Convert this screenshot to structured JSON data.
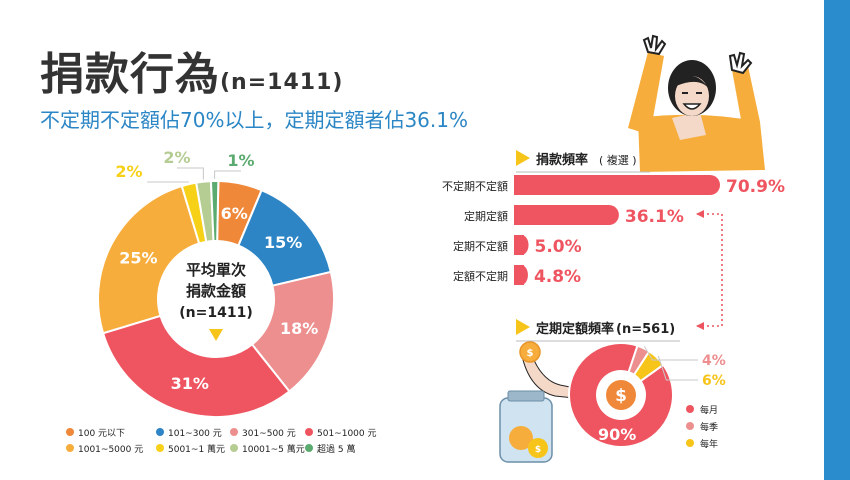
{
  "header": {
    "title": "捐款行為",
    "title_n": "(n=1411)",
    "subtitle": "不定期不定額佔70%以上，定期定額者佔36.1%"
  },
  "colors": {
    "accent_blue": "#2a8ccc",
    "bar_red": "#ef5560",
    "orange": "#f7ad3c"
  },
  "chart_data": [
    {
      "type": "pie",
      "center_label": [
        "平均單次",
        "捐款金額",
        "(n=1411)"
      ],
      "labels": [
        "100 元以下",
        "101~300 元",
        "301~500 元",
        "501~1000 元",
        "1001~5000 元",
        "5001~1 萬元",
        "10001~5 萬元",
        "超過 5 萬"
      ],
      "values": [
        6,
        15,
        18,
        31,
        25,
        2,
        2,
        1
      ],
      "display": [
        "6%",
        "15%",
        "18%",
        "31%",
        "25%",
        "2%",
        "2%",
        "1%"
      ],
      "colors": [
        "#f0883a",
        "#2d85c6",
        "#ec8f8e",
        "#ef5560",
        "#f7ad3c",
        "#f7d117",
        "#b5cd93",
        "#5bab70"
      ]
    },
    {
      "type": "bar",
      "title": "捐款頻率",
      "title_note": "( 複選 )",
      "categories": [
        "不定期不定額",
        "定期定額",
        "定期不定額",
        "定額不定期"
      ],
      "values": [
        70.9,
        36.1,
        5.0,
        4.8
      ],
      "display": [
        "70.9%",
        "36.1%",
        "5.0%",
        "4.8%"
      ]
    },
    {
      "type": "pie",
      "title": "定期定額頻率",
      "title_n": "(n=561)",
      "center_icon": "dollar-coin-icon",
      "labels": [
        "每月",
        "每季",
        "每年"
      ],
      "values": [
        90,
        4,
        6
      ],
      "display": [
        "90%",
        "4%",
        "6%"
      ],
      "colors": [
        "#ef5560",
        "#ec8f8e",
        "#f7c41a"
      ]
    }
  ]
}
